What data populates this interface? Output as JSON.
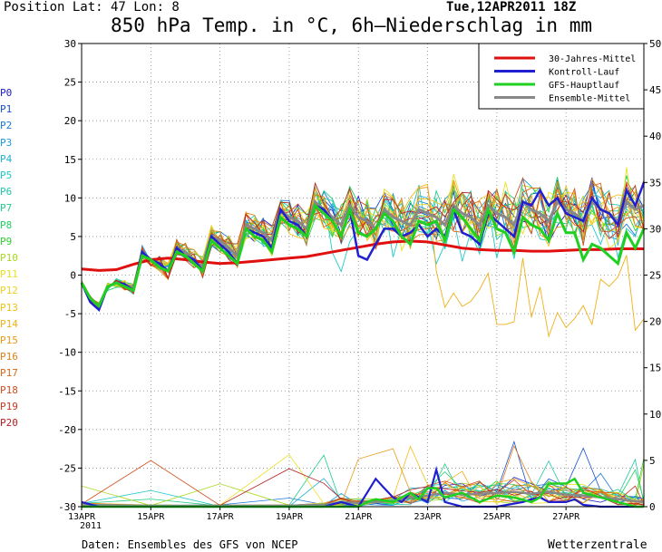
{
  "header": {
    "position": "Position  Lat: 47 Lon: 8",
    "datetime": "Tue,12APR2011 18Z",
    "title": "850 hPa Temp. in °C, 6h–Niederschlag in mm"
  },
  "footer": {
    "source": "Daten: Ensembles des GFS von NCEP",
    "brand": "Wetterzentrale"
  },
  "member_labels": [
    {
      "label": "P0",
      "color": "#1a1acc"
    },
    {
      "label": "P1",
      "color": "#1450d0"
    },
    {
      "label": "P2",
      "color": "#1c78d8"
    },
    {
      "label": "P3",
      "color": "#2098d8"
    },
    {
      "label": "P4",
      "color": "#20b0d0"
    },
    {
      "label": "P5",
      "color": "#20c8c8"
    },
    {
      "label": "P6",
      "color": "#20c8a8"
    },
    {
      "label": "P7",
      "color": "#20cc88"
    },
    {
      "label": "P8",
      "color": "#20d060"
    },
    {
      "label": "P9",
      "color": "#30d030"
    },
    {
      "label": "P10",
      "color": "#a8d820"
    },
    {
      "label": "P11",
      "color": "#e8e020"
    },
    {
      "label": "P12",
      "color": "#f0d020"
    },
    {
      "label": "P13",
      "color": "#f0c018"
    },
    {
      "label": "P14",
      "color": "#f0b018"
    },
    {
      "label": "P15",
      "color": "#e89818"
    },
    {
      "label": "P16",
      "color": "#e08018"
    },
    {
      "label": "P17",
      "color": "#d86818"
    },
    {
      "label": "P18",
      "color": "#d05020"
    },
    {
      "label": "P19",
      "color": "#c83820"
    },
    {
      "label": "P20",
      "color": "#b82020"
    }
  ],
  "chart_data": {
    "type": "line",
    "title": "850 hPa Temp. in °C, 6h–Niederschlag in mm",
    "x_unit": "days since 13APR 00Z",
    "xlim": [
      0,
      16.25
    ],
    "x_ticks": [
      {
        "x": 0,
        "label": "13APR"
      },
      {
        "x": 2,
        "label": "15APR"
      },
      {
        "x": 4,
        "label": "17APR"
      },
      {
        "x": 6,
        "label": "19APR"
      },
      {
        "x": 8,
        "label": "21APR"
      },
      {
        "x": 10,
        "label": "23APR"
      },
      {
        "x": 12,
        "label": "25APR"
      },
      {
        "x": 14,
        "label": "27APR"
      }
    ],
    "x_year_label": "2011",
    "y_left": {
      "label": "°C",
      "range": [
        -30,
        30
      ],
      "ticks": [
        -30,
        -25,
        -20,
        -15,
        -10,
        -5,
        0,
        5,
        10,
        15,
        20,
        25,
        30
      ]
    },
    "y_right": {
      "label": "mm",
      "range": [
        0,
        50
      ],
      "ticks": [
        0,
        5,
        10,
        15,
        20,
        25,
        30,
        35,
        40,
        45,
        50
      ]
    },
    "grid": true,
    "legend_position": "top-right",
    "legend": [
      {
        "name": "30-Jahres-Mittel",
        "color": "#e01010"
      },
      {
        "name": "Kontroll-Lauf",
        "color": "#2020d0"
      },
      {
        "name": "GFS-Hauptlauf",
        "color": "#20d020"
      },
      {
        "name": "Ensemble-Mittel",
        "color": "#888888"
      }
    ],
    "climatology": [
      [
        0,
        0.8
      ],
      [
        0.5,
        0.6
      ],
      [
        1,
        0.7
      ],
      [
        1.5,
        1.4
      ],
      [
        2,
        2.0
      ],
      [
        2.5,
        2.2
      ],
      [
        3,
        2.0
      ],
      [
        3.5,
        1.7
      ],
      [
        4,
        1.5
      ],
      [
        4.5,
        1.6
      ],
      [
        5,
        1.8
      ],
      [
        5.5,
        2.0
      ],
      [
        6,
        2.2
      ],
      [
        6.5,
        2.4
      ],
      [
        7,
        2.8
      ],
      [
        7.5,
        3.2
      ],
      [
        8,
        3.6
      ],
      [
        8.5,
        4.0
      ],
      [
        9,
        4.3
      ],
      [
        9.5,
        4.4
      ],
      [
        10,
        4.3
      ],
      [
        10.5,
        3.9
      ],
      [
        11,
        3.5
      ],
      [
        11.5,
        3.3
      ],
      [
        12,
        3.2
      ],
      [
        12.5,
        3.2
      ],
      [
        13,
        3.1
      ],
      [
        13.5,
        3.1
      ],
      [
        14,
        3.2
      ],
      [
        14.5,
        3.3
      ],
      [
        15,
        3.3
      ],
      [
        15.5,
        3.4
      ],
      [
        16.25,
        3.4
      ]
    ],
    "control_run": [
      [
        0,
        -1
      ],
      [
        0.25,
        -3.5
      ],
      [
        0.5,
        -4.5
      ],
      [
        0.75,
        -1.5
      ],
      [
        1,
        -1
      ],
      [
        1.25,
        -1.2
      ],
      [
        1.5,
        -2
      ],
      [
        1.75,
        3
      ],
      [
        2,
        2
      ],
      [
        2.25,
        1.5
      ],
      [
        2.5,
        0.5
      ],
      [
        2.75,
        3.5
      ],
      [
        3,
        2.5
      ],
      [
        3.25,
        2
      ],
      [
        3.5,
        0.5
      ],
      [
        3.75,
        5
      ],
      [
        4,
        4
      ],
      [
        4.25,
        3
      ],
      [
        4.5,
        1.5
      ],
      [
        4.75,
        6
      ],
      [
        5,
        5.5
      ],
      [
        5.25,
        5
      ],
      [
        5.5,
        3.5
      ],
      [
        5.75,
        8.5
      ],
      [
        6,
        7
      ],
      [
        6.25,
        6.5
      ],
      [
        6.5,
        5
      ],
      [
        6.75,
        9
      ],
      [
        7,
        8.5
      ],
      [
        7.25,
        7
      ],
      [
        7.5,
        5
      ],
      [
        7.75,
        8.5
      ],
      [
        8,
        2.5
      ],
      [
        8.25,
        2
      ],
      [
        8.5,
        4
      ],
      [
        8.75,
        6
      ],
      [
        9,
        6
      ],
      [
        9.25,
        5
      ],
      [
        9.5,
        5.5
      ],
      [
        9.75,
        6.5
      ],
      [
        10,
        5
      ],
      [
        10.25,
        6
      ],
      [
        10.5,
        5
      ],
      [
        10.75,
        8.5
      ],
      [
        11,
        5.5
      ],
      [
        11.25,
        5
      ],
      [
        11.5,
        4
      ],
      [
        11.75,
        8
      ],
      [
        12,
        7
      ],
      [
        12.25,
        6
      ],
      [
        12.5,
        5
      ],
      [
        12.75,
        9.5
      ],
      [
        13,
        9
      ],
      [
        13.25,
        11
      ],
      [
        13.5,
        9
      ],
      [
        13.75,
        10
      ],
      [
        14,
        8
      ],
      [
        14.25,
        7.5
      ],
      [
        14.5,
        7
      ],
      [
        14.75,
        10
      ],
      [
        15,
        8.5
      ],
      [
        15.25,
        8
      ],
      [
        15.5,
        6.5
      ],
      [
        15.75,
        11
      ],
      [
        16,
        9
      ],
      [
        16.25,
        12
      ]
    ],
    "main_run": [
      [
        0,
        -1
      ],
      [
        0.25,
        -3
      ],
      [
        0.5,
        -4
      ],
      [
        0.75,
        -1.5
      ],
      [
        1,
        -1
      ],
      [
        1.25,
        -1.5
      ],
      [
        1.5,
        -2
      ],
      [
        1.75,
        2.5
      ],
      [
        2,
        2
      ],
      [
        2.25,
        1
      ],
      [
        2.5,
        0.5
      ],
      [
        2.75,
        3
      ],
      [
        3,
        2.5
      ],
      [
        3.25,
        1.5
      ],
      [
        3.5,
        0.5
      ],
      [
        3.75,
        4.5
      ],
      [
        4,
        3.5
      ],
      [
        4.25,
        2.5
      ],
      [
        4.5,
        1.5
      ],
      [
        4.75,
        6
      ],
      [
        5,
        5
      ],
      [
        5.25,
        4.5
      ],
      [
        5.5,
        3
      ],
      [
        5.75,
        7.5
      ],
      [
        6,
        6.5
      ],
      [
        6.25,
        6
      ],
      [
        6.5,
        5
      ],
      [
        6.75,
        9
      ],
      [
        7,
        8
      ],
      [
        7.25,
        7
      ],
      [
        7.5,
        5
      ],
      [
        7.75,
        8.5
      ],
      [
        8,
        5.5
      ],
      [
        8.25,
        5
      ],
      [
        8.5,
        6
      ],
      [
        8.75,
        8
      ],
      [
        9,
        7
      ],
      [
        9.25,
        5
      ],
      [
        9.5,
        4
      ],
      [
        9.75,
        7
      ],
      [
        10,
        6.5
      ],
      [
        10.25,
        7
      ],
      [
        10.5,
        4.5
      ],
      [
        10.75,
        8.5
      ],
      [
        11,
        7.5
      ],
      [
        11.25,
        6
      ],
      [
        11.5,
        4.5
      ],
      [
        11.75,
        8.5
      ],
      [
        12,
        6
      ],
      [
        12.25,
        5.5
      ],
      [
        12.5,
        3
      ],
      [
        12.75,
        7.5
      ],
      [
        13,
        6.5
      ],
      [
        13.25,
        6
      ],
      [
        13.5,
        4.5
      ],
      [
        13.75,
        8
      ],
      [
        14,
        5.5
      ],
      [
        14.25,
        5.5
      ],
      [
        14.5,
        2
      ],
      [
        14.75,
        4
      ],
      [
        15,
        3.5
      ],
      [
        15.25,
        2.5
      ],
      [
        15.5,
        1.5
      ],
      [
        15.75,
        5.5
      ],
      [
        16,
        3.5
      ],
      [
        16.25,
        6
      ]
    ],
    "ensemble_mean": [
      [
        0,
        -1
      ],
      [
        0.25,
        -3
      ],
      [
        0.5,
        -4
      ],
      [
        0.75,
        -1.5
      ],
      [
        1,
        -1
      ],
      [
        1.25,
        -1.3
      ],
      [
        1.5,
        -1.8
      ],
      [
        1.75,
        3
      ],
      [
        2,
        2
      ],
      [
        2.25,
        1.5
      ],
      [
        2.5,
        0.5
      ],
      [
        2.75,
        3.5
      ],
      [
        3,
        3
      ],
      [
        3.25,
        2
      ],
      [
        3.5,
        1
      ],
      [
        3.75,
        5
      ],
      [
        4,
        4.5
      ],
      [
        4.25,
        3.5
      ],
      [
        4.5,
        2.5
      ],
      [
        4.75,
        6.5
      ],
      [
        5,
        6
      ],
      [
        5.25,
        5.5
      ],
      [
        5.5,
        4.5
      ],
      [
        5.75,
        8.5
      ],
      [
        6,
        7.5
      ],
      [
        6.25,
        7
      ],
      [
        6.5,
        6
      ],
      [
        6.75,
        9.5
      ],
      [
        7,
        8.5
      ],
      [
        7.25,
        7.5
      ],
      [
        7.5,
        6.5
      ],
      [
        7.75,
        9
      ],
      [
        8,
        7.5
      ],
      [
        8.25,
        7
      ],
      [
        8.5,
        6
      ],
      [
        8.75,
        8.5
      ],
      [
        9,
        7.5
      ],
      [
        9.25,
        7
      ],
      [
        9.5,
        6.5
      ],
      [
        9.75,
        8.5
      ],
      [
        10,
        8
      ],
      [
        10.25,
        7.5
      ],
      [
        10.5,
        6.5
      ],
      [
        10.75,
        9
      ],
      [
        11,
        8
      ],
      [
        11.25,
        7.5
      ],
      [
        11.5,
        6.5
      ],
      [
        11.75,
        9
      ],
      [
        12,
        8
      ],
      [
        12.25,
        7.5
      ],
      [
        12.5,
        6.5
      ],
      [
        12.75,
        9.5
      ],
      [
        13,
        8.5
      ],
      [
        13.25,
        8
      ],
      [
        13.5,
        7
      ],
      [
        13.75,
        9.5
      ],
      [
        14,
        8.5
      ],
      [
        14.25,
        8
      ],
      [
        14.5,
        7
      ],
      [
        14.75,
        9.5
      ],
      [
        15,
        8.5
      ],
      [
        15.25,
        8
      ],
      [
        15.5,
        7
      ],
      [
        15.75,
        9.5
      ],
      [
        16,
        8.5
      ],
      [
        16.25,
        9
      ]
    ],
    "precip_control": [
      [
        0,
        0.5
      ],
      [
        0.5,
        0
      ],
      [
        1,
        0
      ],
      [
        2,
        0
      ],
      [
        3,
        0
      ],
      [
        4,
        0
      ],
      [
        5,
        0
      ],
      [
        6,
        0
      ],
      [
        7,
        0
      ],
      [
        7.5,
        0.5
      ],
      [
        8,
        0
      ],
      [
        8.25,
        1.5
      ],
      [
        8.5,
        3
      ],
      [
        8.75,
        2
      ],
      [
        9,
        1
      ],
      [
        9.25,
        0.5
      ],
      [
        9.5,
        1.5
      ],
      [
        9.75,
        1
      ],
      [
        10,
        0.5
      ],
      [
        10.25,
        4
      ],
      [
        10.5,
        0.5
      ],
      [
        11,
        0
      ],
      [
        12,
        0
      ],
      [
        12.75,
        0.5
      ],
      [
        13,
        0.8
      ],
      [
        13.25,
        1
      ],
      [
        13.5,
        0.5
      ],
      [
        14,
        0.5
      ],
      [
        14.25,
        0.8
      ],
      [
        14.5,
        0.2
      ],
      [
        15,
        0
      ],
      [
        16.25,
        0
      ]
    ],
    "precip_main": [
      [
        0,
        0
      ],
      [
        8,
        0
      ],
      [
        8.25,
        0.5
      ],
      [
        8.5,
        0.8
      ],
      [
        9,
        0.5
      ],
      [
        9.5,
        1.5
      ],
      [
        9.75,
        0.8
      ],
      [
        10,
        2
      ],
      [
        10.25,
        2
      ],
      [
        10.5,
        1
      ],
      [
        11,
        1.5
      ],
      [
        11.5,
        0.5
      ],
      [
        12,
        1.2
      ],
      [
        12.5,
        1
      ],
      [
        13,
        0.5
      ],
      [
        13.25,
        1
      ],
      [
        13.5,
        2.5
      ],
      [
        14,
        2.5
      ],
      [
        14.25,
        3
      ],
      [
        14.5,
        1.5
      ],
      [
        15,
        1
      ],
      [
        15.5,
        0.5
      ],
      [
        16,
        0
      ],
      [
        16.25,
        0
      ]
    ],
    "precip_mean": [
      [
        0,
        0.2
      ],
      [
        2,
        0.1
      ],
      [
        4,
        0.1
      ],
      [
        6,
        0.1
      ],
      [
        7,
        0.2
      ],
      [
        7.5,
        0.5
      ],
      [
        8,
        0.4
      ],
      [
        9,
        0.6
      ],
      [
        9.5,
        1
      ],
      [
        10,
        1.2
      ],
      [
        10.5,
        1.5
      ],
      [
        11,
        1.3
      ],
      [
        11.5,
        1.4
      ],
      [
        12,
        1.5
      ],
      [
        12.5,
        1.6
      ],
      [
        13,
        1.4
      ],
      [
        13.5,
        1.6
      ],
      [
        14,
        1.3
      ],
      [
        14.5,
        1.2
      ],
      [
        15,
        1
      ],
      [
        15.5,
        0.8
      ],
      [
        16,
        0.6
      ],
      [
        16.25,
        0.5
      ]
    ]
  }
}
